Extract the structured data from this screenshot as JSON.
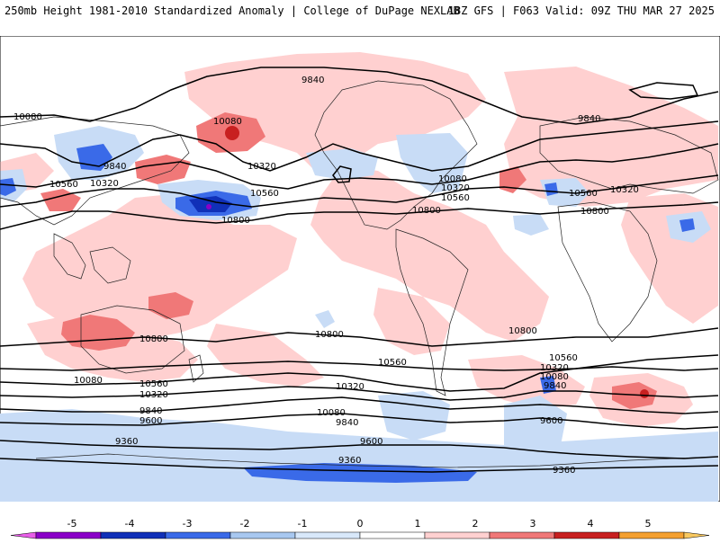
{
  "header": {
    "left_title": "250mb Height 1981-2010 Standardized Anomaly | College of DuPage NEXLAB",
    "right_title": "18Z GFS | F063 Valid: 09Z THU MAR 27 2025"
  },
  "colorbar": {
    "ticks": [
      "-5",
      "-4",
      "-3",
      "-2",
      "-1",
      "0",
      "1",
      "2",
      "3",
      "4",
      "5"
    ],
    "colors": [
      "#e85ee8",
      "#8a00c8",
      "#1030b8",
      "#3a6ae8",
      "#a8c8f0",
      "#d8e8fa",
      "#ffffff",
      "#ffd0d0",
      "#f07878",
      "#c82020",
      "#f4a030",
      "#f8c860"
    ]
  },
  "contour_labels": [
    {
      "text": "9840"
    },
    {
      "text": "10080"
    },
    {
      "text": "10080"
    },
    {
      "text": "9840"
    },
    {
      "text": "10560"
    },
    {
      "text": "10320"
    },
    {
      "text": "10320"
    },
    {
      "text": "10560"
    },
    {
      "text": "10800"
    },
    {
      "text": "10080"
    },
    {
      "text": "10320"
    },
    {
      "text": "10560"
    },
    {
      "text": "10800"
    },
    {
      "text": "9840"
    },
    {
      "text": "10560"
    },
    {
      "text": "10320"
    },
    {
      "text": "10800"
    },
    {
      "text": "10800"
    },
    {
      "text": "10800"
    },
    {
      "text": "10800"
    },
    {
      "text": "10560"
    },
    {
      "text": "10080"
    },
    {
      "text": "10560"
    },
    {
      "text": "10320"
    },
    {
      "text": "10320"
    },
    {
      "text": "9840"
    },
    {
      "text": "10080"
    },
    {
      "text": "9840"
    },
    {
      "text": "9600"
    },
    {
      "text": "10560"
    },
    {
      "text": "10320"
    },
    {
      "text": "10080"
    },
    {
      "text": "9840"
    },
    {
      "text": "9600"
    },
    {
      "text": "9360"
    },
    {
      "text": "9600"
    },
    {
      "text": "9360"
    },
    {
      "text": "9360"
    }
  ]
}
